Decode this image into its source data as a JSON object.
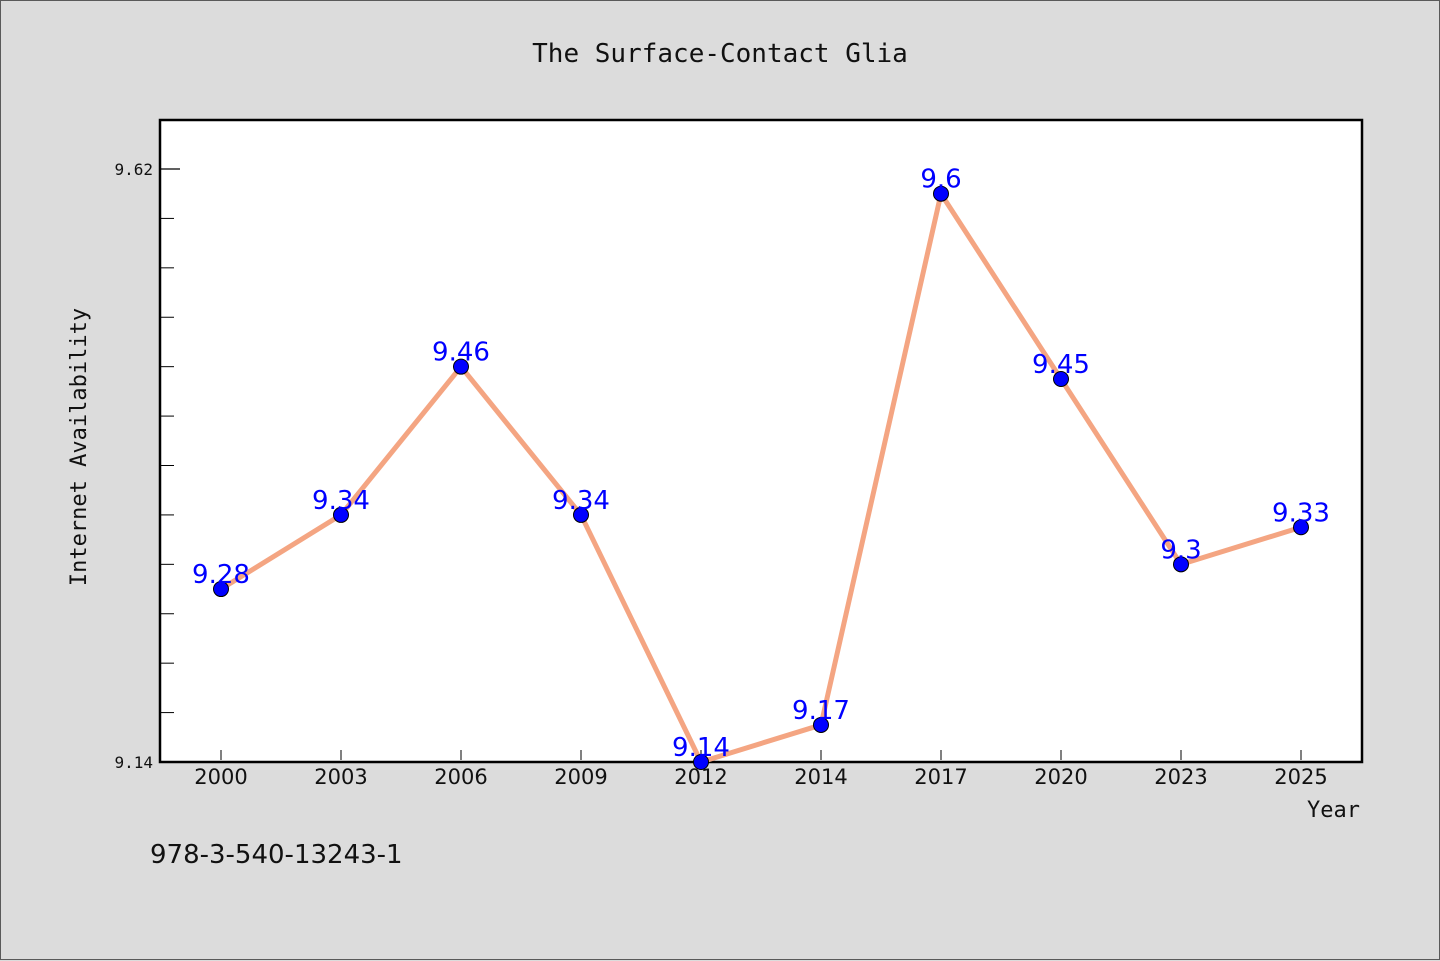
{
  "chart_data": {
    "type": "line",
    "title": "The Surface-Contact Glia",
    "xlabel": "Year",
    "ylabel": "Internet Availability",
    "categories": [
      "2000",
      "2003",
      "2006",
      "2009",
      "2012",
      "2014",
      "2017",
      "2020",
      "2023",
      "2025"
    ],
    "series": [
      {
        "values": [
          9.28,
          9.34,
          9.46,
          9.34,
          9.14,
          9.17,
          9.6,
          9.45,
          9.3,
          9.33
        ],
        "labels": [
          "9.28",
          "9.34",
          "9.46",
          "9.34",
          "9.14",
          "9.17",
          "9.6",
          "9.45",
          "9.3",
          "9.33"
        ],
        "line_color": "#f4a582",
        "marker_color": "#0000ff"
      }
    ],
    "yticks": [
      "9.14",
      "9.62"
    ],
    "ytick_values": [
      9.14,
      9.62
    ],
    "ylim": [
      9.14,
      9.66
    ],
    "grid": false,
    "legend": "none"
  },
  "footer": {
    "isbn": "978-3-540-13243-1"
  }
}
